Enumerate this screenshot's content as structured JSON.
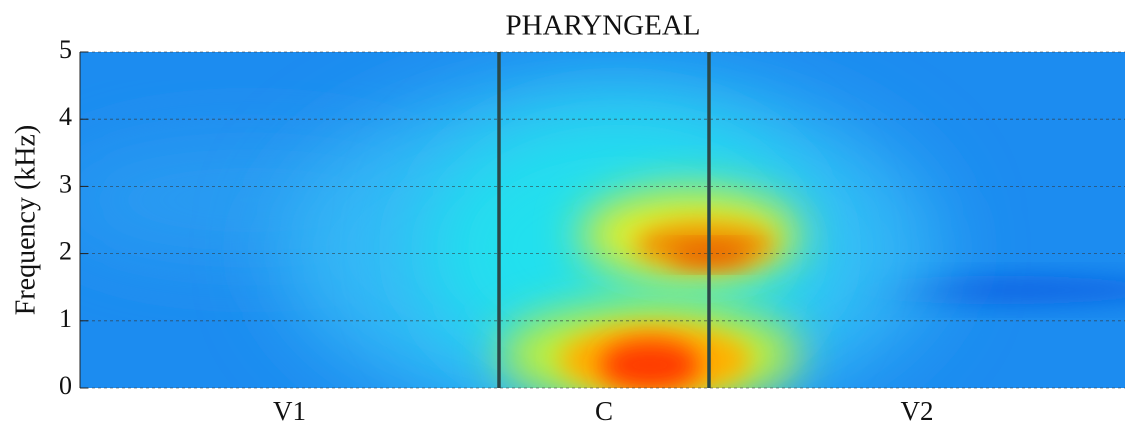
{
  "chart_data": {
    "type": "heatmap",
    "title": "PHARYNGEAL",
    "ylabel": "Frequency (kHz)",
    "categories": [
      "V1",
      "C",
      "V2"
    ],
    "ylim": [
      0,
      5
    ],
    "yticks": [
      0,
      1,
      2,
      3,
      4,
      5
    ],
    "grid": true
  }
}
